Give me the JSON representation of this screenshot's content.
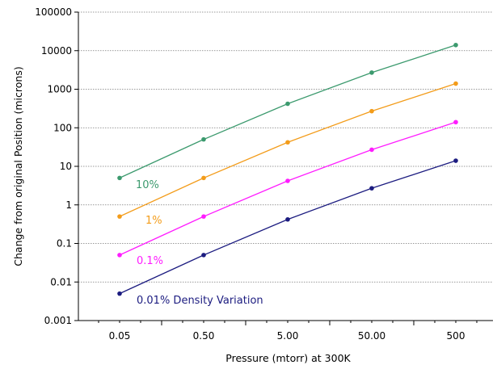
{
  "chart_data": {
    "type": "line",
    "title": "",
    "xlabel": "Pressure (mtorr) at 300K",
    "ylabel": "Change from original Position (microns)",
    "x_scale": "log",
    "y_scale": "log",
    "x": [
      0.05,
      0.5,
      5,
      50,
      500
    ],
    "x_tick_labels": [
      "0.05",
      "0.50",
      "5.00",
      "50.00",
      "500"
    ],
    "ylim": [
      0.001,
      100000
    ],
    "y_tick_labels": [
      "100000",
      "10000",
      "1000",
      "100",
      "10",
      "1",
      "0.1",
      "0.01",
      "0.001"
    ],
    "grid": "horizontal",
    "legend": "none",
    "series": [
      {
        "name": "10%",
        "color": "#3c9a6e",
        "values": [
          5,
          50,
          420,
          2700,
          14000
        ]
      },
      {
        "name": "1%",
        "color": "#f39c1a",
        "values": [
          0.5,
          5,
          42,
          270,
          1400
        ]
      },
      {
        "name": "0.1%",
        "color": "#ff1cff",
        "values": [
          0.05,
          0.5,
          4.2,
          27,
          140
        ]
      },
      {
        "name": "0.01% Density Variation",
        "color": "#1c1c80",
        "values": [
          0.005,
          0.05,
          0.42,
          2.7,
          14
        ]
      }
    ]
  }
}
